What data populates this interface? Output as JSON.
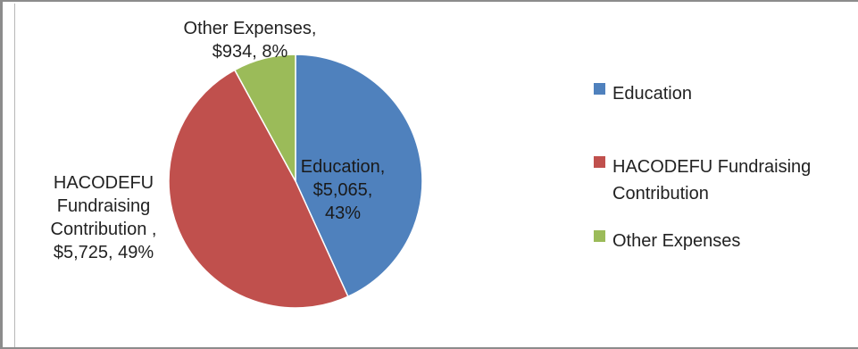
{
  "chart_data": {
    "type": "pie",
    "title": "",
    "currency": "$",
    "slices": [
      {
        "name": "Education",
        "value": 5065,
        "percent": 43,
        "color": "#4f81bd",
        "label_lines": [
          "Education,",
          "$5,065,",
          "43%"
        ]
      },
      {
        "name": "HACODEFU Fundraising Contribution",
        "value": 5725,
        "percent": 49,
        "color": "#c0504d",
        "label_lines": [
          "HACODEFU",
          "Fundraising",
          "Contribution ,",
          "$5,725, 49%"
        ]
      },
      {
        "name": "Other Expenses",
        "value": 934,
        "percent": 8,
        "color": "#9bbb59",
        "label_lines": [
          "Other Expenses,",
          "$934, 8%"
        ]
      }
    ],
    "legend": {
      "placement": "right",
      "entries": [
        {
          "lines": [
            "Education"
          ],
          "color": "#4f81bd"
        },
        {
          "lines": [
            "HACODEFU Fundraising",
            "Contribution"
          ],
          "color": "#c0504d"
        },
        {
          "lines": [
            "Other Expenses"
          ],
          "color": "#9bbb59"
        }
      ]
    }
  }
}
